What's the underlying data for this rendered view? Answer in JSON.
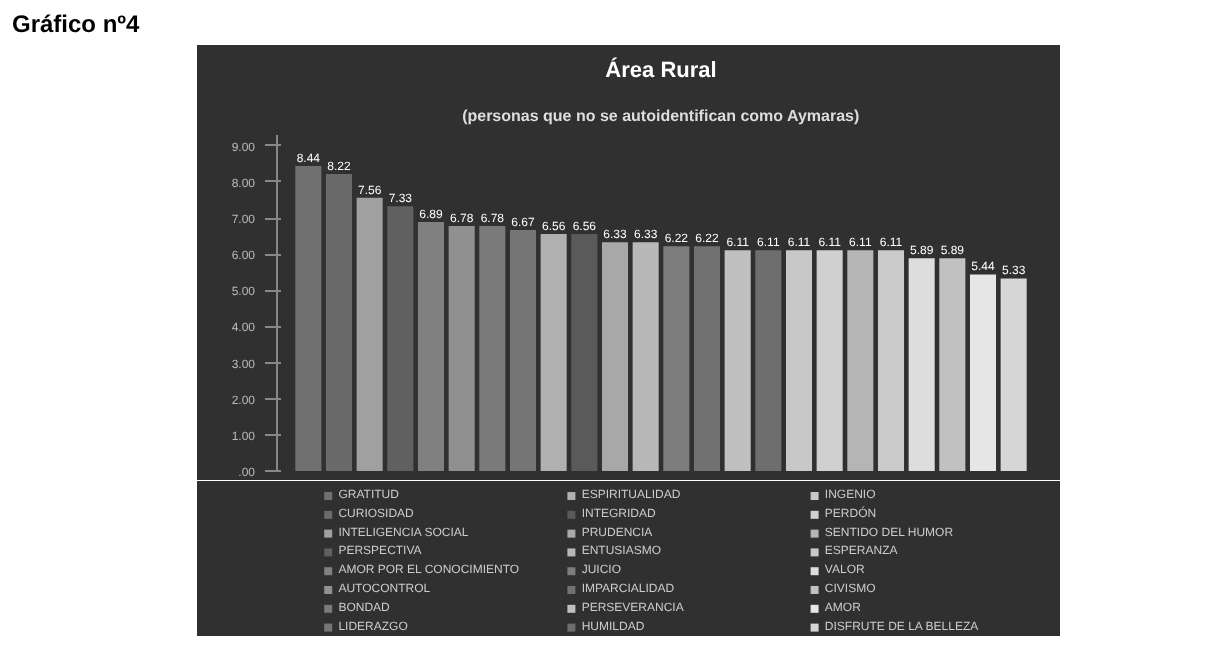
{
  "chart_data": {
    "type": "bar",
    "title": "Área Rural",
    "subtitle": "(personas que no se autoidentifican como Aymaras)",
    "annotations": [
      "Gráfico nº4"
    ],
    "categories": [
      null
    ],
    "series": [
      {
        "name": "GRATITUD",
        "color": "#707070",
        "values": [
          8.44
        ]
      },
      {
        "name": "CURIOSIDAD",
        "color": "#6a6a6a",
        "values": [
          8.22
        ]
      },
      {
        "name": "INTELIGENCIA SOCIAL",
        "color": "#a0a0a0",
        "values": [
          7.56
        ]
      },
      {
        "name": "PERSPECTIVA",
        "color": "#606060",
        "values": [
          7.33
        ]
      },
      {
        "name": "AMOR POR EL CONOCIMIENTO",
        "color": "#808080",
        "values": [
          6.89
        ]
      },
      {
        "name": "AUTOCONTROL",
        "color": "#909090",
        "values": [
          6.78
        ]
      },
      {
        "name": "BONDAD",
        "color": "#7a7a7a",
        "values": [
          6.78
        ]
      },
      {
        "name": "LIDERAZGO",
        "color": "#757575",
        "values": [
          6.67
        ]
      },
      {
        "name": "ESPIRITUALIDAD",
        "color": "#b0b0b0",
        "values": [
          6.56
        ]
      },
      {
        "name": "INTEGRIDAD",
        "color": "#5a5a5a",
        "values": [
          6.56
        ]
      },
      {
        "name": "PRUDENCIA",
        "color": "#a8a8a8",
        "values": [
          6.33
        ]
      },
      {
        "name": "ENTUSIASMO",
        "color": "#b8b8b8",
        "values": [
          6.33
        ]
      },
      {
        "name": "JUICIO",
        "color": "#7c7c7c",
        "values": [
          6.22
        ]
      },
      {
        "name": "IMPARCIALIDAD",
        "color": "#717171",
        "values": [
          6.22
        ]
      },
      {
        "name": "PERSEVERANCIA",
        "color": "#c0c0c0",
        "values": [
          6.11
        ]
      },
      {
        "name": "HUMILDAD",
        "color": "#6e6e6e",
        "values": [
          6.11
        ]
      },
      {
        "name": "INGENIO",
        "color": "#c8c8c8",
        "values": [
          6.11
        ]
      },
      {
        "name": "PERDÓN",
        "color": "#d0d0d0",
        "values": [
          6.11
        ]
      },
      {
        "name": "SENTIDO DEL HUMOR",
        "color": "#b5b5b5",
        "values": [
          6.11
        ]
      },
      {
        "name": "ESPERANZA",
        "color": "#cacaca",
        "values": [
          6.11
        ]
      },
      {
        "name": "VALOR",
        "color": "#dddddd",
        "values": [
          5.89
        ]
      },
      {
        "name": "CIVISMO",
        "color": "#c1c1c1",
        "values": [
          5.89
        ]
      },
      {
        "name": "AMOR",
        "color": "#e6e6e6",
        "values": [
          5.44
        ]
      },
      {
        "name": "DISFRUTE DE LA BELLEZA",
        "color": "#d6d6d6",
        "values": [
          5.33
        ]
      }
    ],
    "ylim": [
      0,
      9.3
    ],
    "yticks": [
      {
        "value": 0,
        "label": ".00"
      },
      {
        "value": 1,
        "label": "1.00"
      },
      {
        "value": 2,
        "label": "2.00"
      },
      {
        "value": 3,
        "label": "3.00"
      },
      {
        "value": 4,
        "label": "4.00"
      },
      {
        "value": 5,
        "label": "5.00"
      },
      {
        "value": 6,
        "label": "6.00"
      },
      {
        "value": 7,
        "label": "7.00"
      },
      {
        "value": 8,
        "label": "8.00"
      },
      {
        "value": 9,
        "label": "9.00"
      }
    ],
    "data_labels": true,
    "legend": "bottom",
    "grid": false
  }
}
